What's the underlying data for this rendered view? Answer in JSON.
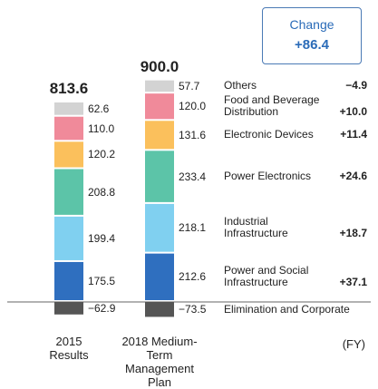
{
  "chart_data": {
    "type": "stacked-bar",
    "categories": [
      "2015 Results",
      "2018 Medium-Term Management Plan"
    ],
    "x_unit": "(FY)",
    "totals": [
      813.6,
      900
    ],
    "total_labels": [
      "813.6",
      "900.0"
    ],
    "change_title": "Change",
    "change_total": {
      "value": 86.4,
      "label": "+86.4"
    },
    "series": [
      {
        "name": "Elimination and Corporate",
        "color": "#555555",
        "values": [
          -62.9,
          -73.5
        ],
        "value_labels": [
          "−62.9",
          "−73.5"
        ]
      },
      {
        "name": "Power and Social Infrastructure",
        "color": "#2f6fbf",
        "values": [
          175.5,
          212.6
        ],
        "value_labels": [
          "175.5",
          "212.6"
        ],
        "change": {
          "value": 37.1,
          "label": "+37.1"
        }
      },
      {
        "name": "Industrial Infrastructure",
        "color": "#80d0f0",
        "values": [
          199.4,
          218.1
        ],
        "value_labels": [
          "199.4",
          "218.1"
        ],
        "change": {
          "value": 18.7,
          "label": "+18.7"
        }
      },
      {
        "name": "Power Electronics",
        "color": "#5cc4a8",
        "values": [
          208.8,
          233.4
        ],
        "value_labels": [
          "208.8",
          "233.4"
        ],
        "change": {
          "value": 24.6,
          "label": "+24.6"
        }
      },
      {
        "name": "Electronic Devices",
        "color": "#fbc05c",
        "values": [
          120.2,
          131.6
        ],
        "value_labels": [
          "120.2",
          "131.6"
        ],
        "change": {
          "value": 11.4,
          "label": "+11.4"
        }
      },
      {
        "name": "Food and Beverage Distribution",
        "color": "#f08a9a",
        "values": [
          110.0,
          120.0
        ],
        "value_labels": [
          "110.0",
          "120.0"
        ],
        "change": {
          "value": 10.0,
          "label": "+10.0"
        }
      },
      {
        "name": "Others",
        "color": "#d3d3d3",
        "values": [
          62.6,
          57.7
        ],
        "value_labels": [
          "62.6",
          "57.7"
        ],
        "change": {
          "value": -4.9,
          "label": "−4.9"
        }
      }
    ]
  }
}
